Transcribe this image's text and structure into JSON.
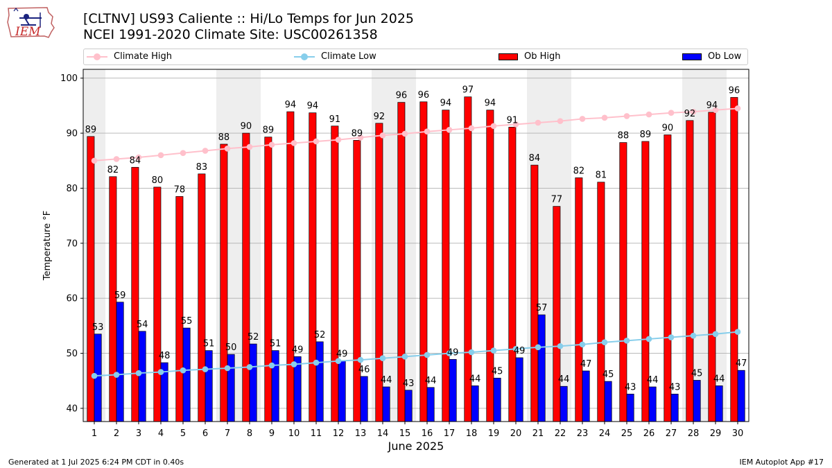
{
  "header": {
    "title_line1": "[CLTNV] US93 Caliente :: Hi/Lo Temps for Jun 2025",
    "title_line2": "NCEI 1991-2020 Climate Site: USC00261358",
    "logo_text": "IEM"
  },
  "legend": {
    "climate_high": "Climate High",
    "climate_low": "Climate Low",
    "ob_high": "Ob High",
    "ob_low": "Ob Low"
  },
  "footer": {
    "generated": "Generated at 1 Jul 2025 6:24 PM CDT in 0.40s",
    "app": "IEM Autoplot App #17"
  },
  "colors": {
    "ob_high": "#ff0000",
    "ob_low": "#0000ff",
    "climate_high": "#ffc0cb",
    "climate_low": "#87ceeb",
    "weekend_shade": "#eeeeee",
    "grid": "#b0b0b0"
  },
  "chart_data": {
    "type": "bar",
    "xlabel": "June 2025",
    "ylabel": "Temperature °F",
    "ylim": [
      37.6,
      101.6
    ],
    "yticks": [
      40,
      50,
      60,
      70,
      80,
      90,
      100
    ],
    "grid": "horizontal",
    "legend_position": "top",
    "categories": [
      "1",
      "2",
      "3",
      "4",
      "5",
      "6",
      "7",
      "8",
      "9",
      "10",
      "11",
      "12",
      "13",
      "14",
      "15",
      "16",
      "17",
      "18",
      "19",
      "20",
      "21",
      "22",
      "23",
      "24",
      "25",
      "26",
      "27",
      "28",
      "29",
      "30"
    ],
    "shaded_days": [
      1,
      7,
      8,
      14,
      15,
      21,
      22,
      28,
      29
    ],
    "series": [
      {
        "name": "Ob High",
        "kind": "bar",
        "values": [
          89,
          82,
          84,
          80,
          78,
          83,
          88,
          90,
          89,
          94,
          94,
          91,
          89,
          92,
          96,
          96,
          94,
          97,
          94,
          91,
          84,
          77,
          82,
          81,
          88,
          89,
          90,
          92,
          94,
          96
        ],
        "plotted": [
          89.4,
          82.1,
          83.8,
          80.2,
          78.5,
          82.6,
          88.0,
          90.0,
          89.3,
          93.9,
          93.7,
          91.3,
          88.7,
          91.8,
          95.6,
          95.7,
          94.2,
          96.6,
          94.2,
          91.1,
          84.2,
          76.7,
          81.9,
          81.1,
          88.3,
          88.5,
          89.7,
          92.3,
          93.8,
          96.5
        ]
      },
      {
        "name": "Ob Low",
        "kind": "bar",
        "values": [
          53,
          59,
          54,
          48,
          55,
          51,
          50,
          52,
          51,
          49,
          52,
          49,
          46,
          44,
          43,
          44,
          49,
          44,
          45,
          49,
          57,
          44,
          47,
          45,
          43,
          44,
          43,
          45,
          44,
          47
        ],
        "plotted": [
          53.5,
          59.3,
          54.0,
          48.3,
          54.6,
          50.5,
          49.8,
          51.7,
          50.5,
          49.4,
          52.1,
          48.6,
          45.8,
          43.9,
          43.3,
          43.8,
          48.9,
          44.1,
          45.5,
          49.2,
          57.0,
          44.0,
          46.8,
          44.9,
          42.6,
          43.9,
          42.6,
          45.1,
          44.1,
          46.9
        ]
      },
      {
        "name": "Climate High",
        "kind": "line",
        "values": [
          85.0,
          85.3,
          85.6,
          86.0,
          86.4,
          86.8,
          87.2,
          87.5,
          87.9,
          88.2,
          88.5,
          88.8,
          89.2,
          89.6,
          89.9,
          90.3,
          90.6,
          90.9,
          91.3,
          91.6,
          91.9,
          92.2,
          92.6,
          92.8,
          93.1,
          93.4,
          93.7,
          93.9,
          94.2,
          94.5
        ]
      },
      {
        "name": "Climate Low",
        "kind": "line",
        "values": [
          45.9,
          46.1,
          46.4,
          46.6,
          46.9,
          47.1,
          47.3,
          47.5,
          47.8,
          48.0,
          48.3,
          48.6,
          48.8,
          49.1,
          49.4,
          49.7,
          50.0,
          50.2,
          50.5,
          50.8,
          51.1,
          51.3,
          51.6,
          52.0,
          52.3,
          52.6,
          52.9,
          53.2,
          53.5,
          53.9
        ]
      }
    ]
  }
}
